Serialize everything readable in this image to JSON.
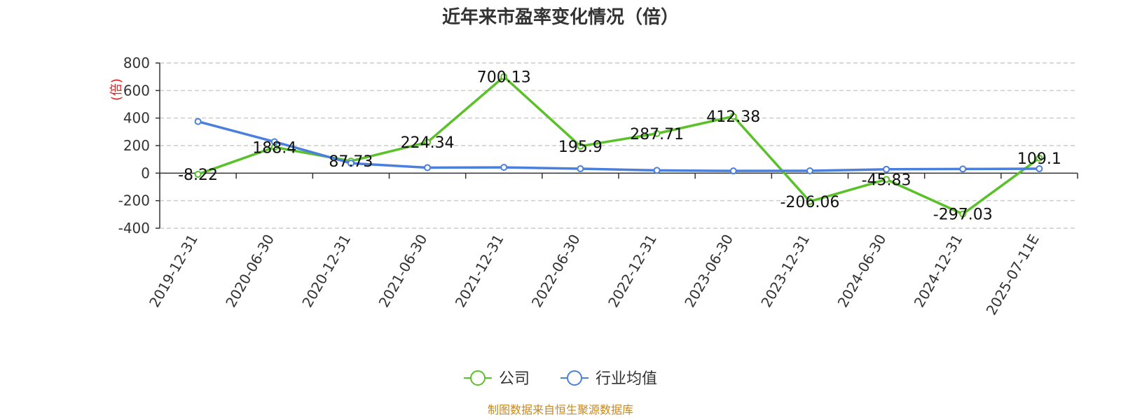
{
  "chart_data": {
    "type": "line",
    "title": "近年来市盈率变化情况（倍）",
    "ylabel": "(倍)",
    "categories": [
      "2019-12-31",
      "2020-06-30",
      "2020-12-31",
      "2021-06-30",
      "2021-12-31",
      "2022-06-30",
      "2022-12-31",
      "2023-06-30",
      "2023-12-31",
      "2024-06-30",
      "2024-12-31",
      "2025-07-11E"
    ],
    "ylim": [
      -400,
      800
    ],
    "yticks": [
      800,
      600,
      400,
      200,
      0,
      -200,
      -400
    ],
    "grid": true,
    "legend_position": "bottom-center",
    "series": [
      {
        "name": "公司",
        "color": "#5ac12a",
        "values": [
          -8.22,
          188.4,
          87.73,
          224.34,
          700.13,
          195.9,
          287.71,
          412.38,
          -206.06,
          -45.83,
          -297.03,
          109.1
        ],
        "labels": [
          "-8.22",
          "188.4",
          "87.73",
          "224.34",
          "700.13",
          "195.9",
          "287.71",
          "412.38",
          "-206.06",
          "-45.83",
          "-297.03",
          "109.1"
        ]
      },
      {
        "name": "行业均值",
        "color": "#4a7fdd",
        "values": [
          375,
          228,
          72,
          40,
          42,
          32,
          20,
          16,
          17,
          28,
          30,
          32
        ]
      }
    ]
  },
  "source_text": "制图数据来自恒生聚源数据库"
}
